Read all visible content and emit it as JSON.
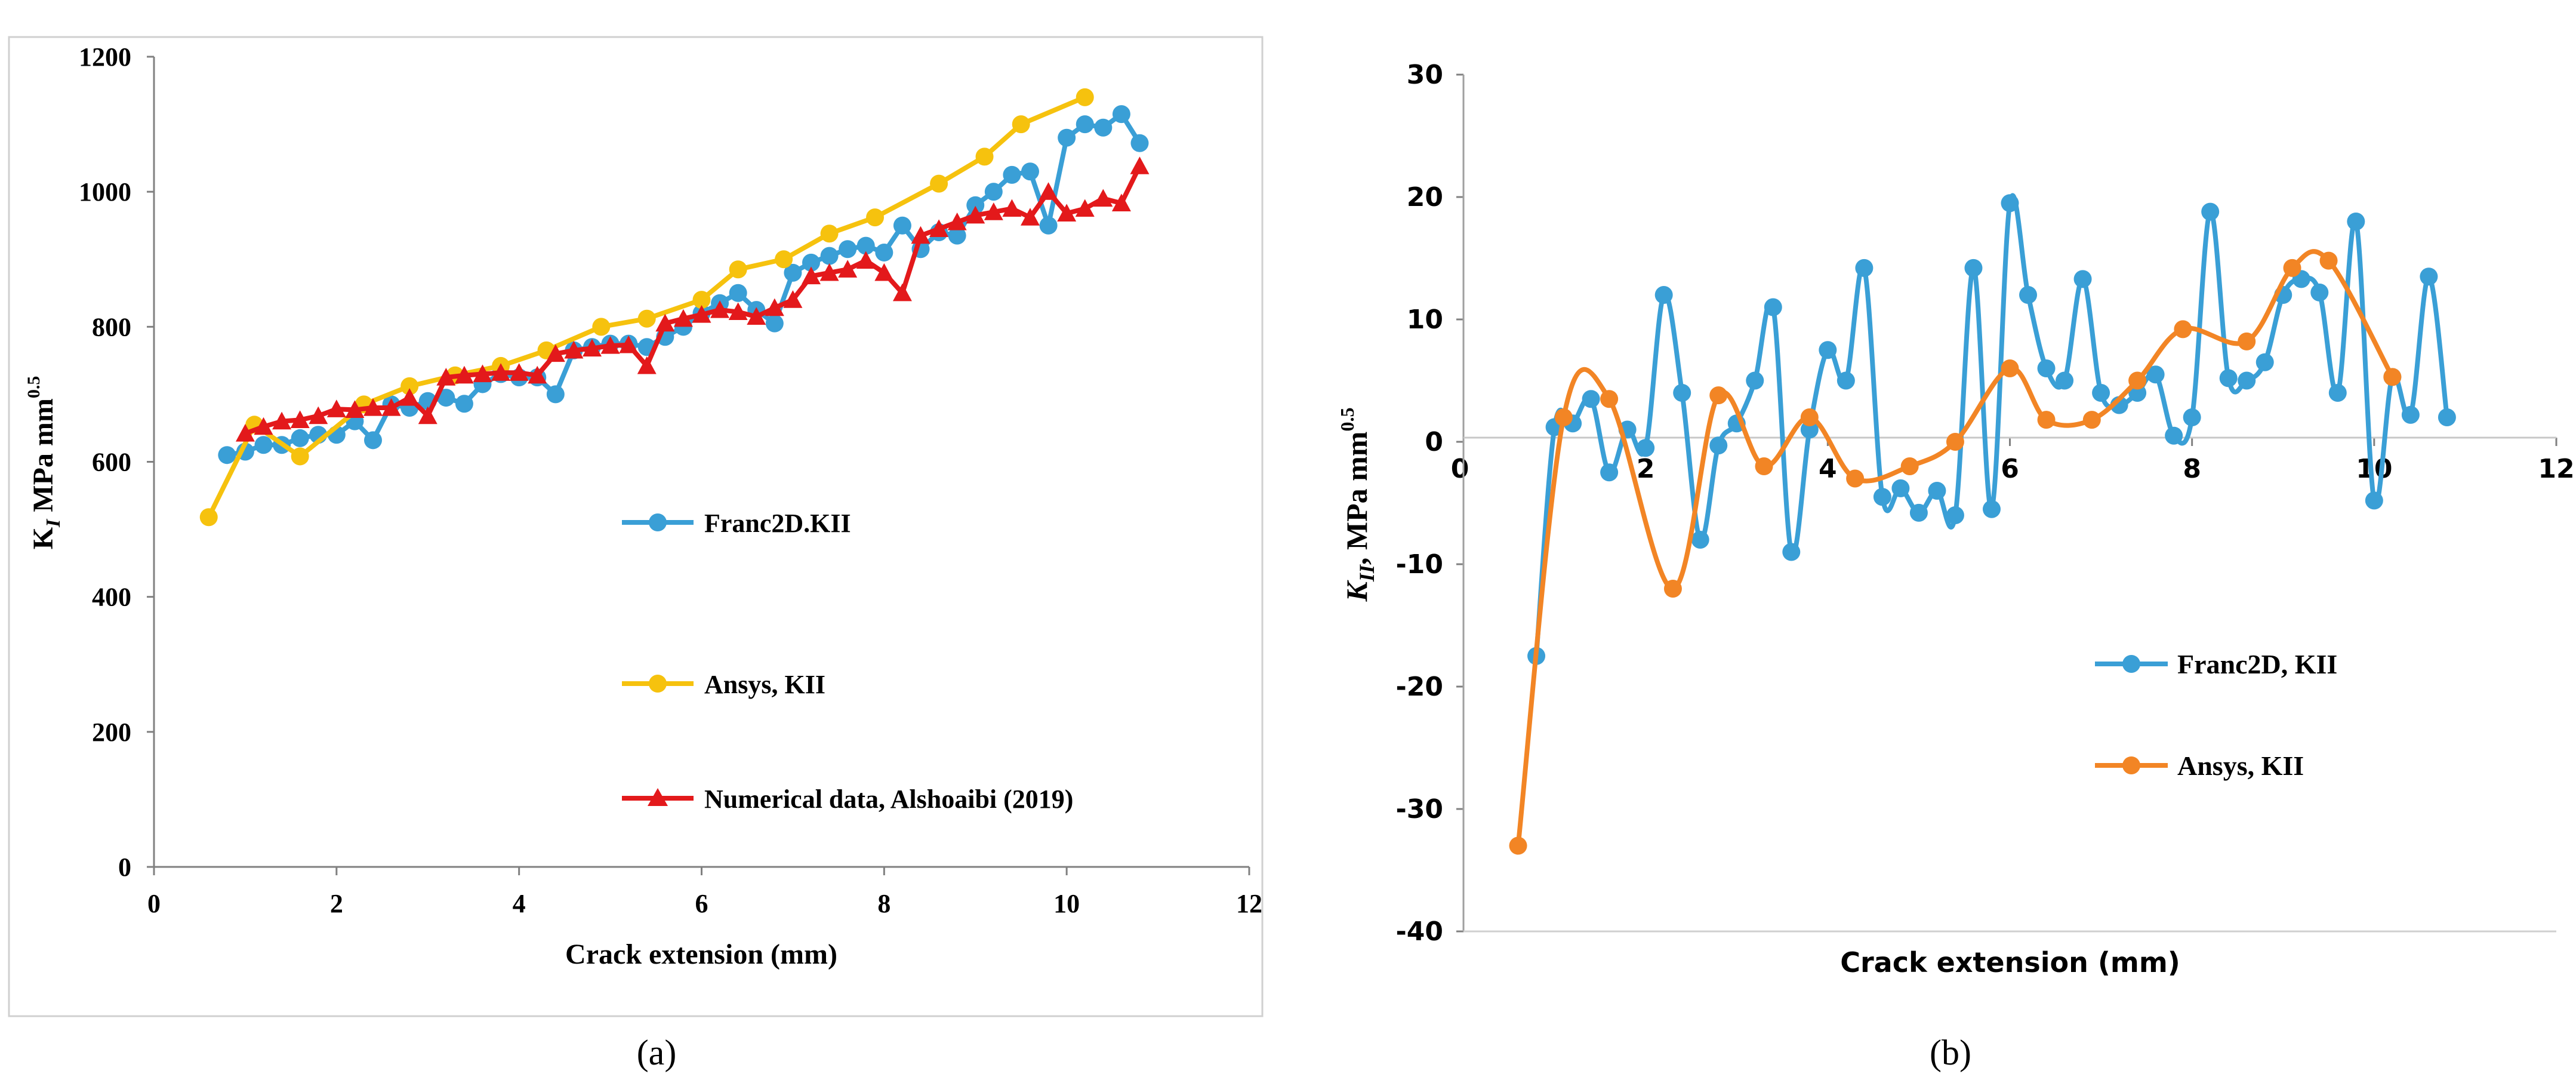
{
  "chart_data": [
    {
      "panel": "a",
      "type": "line",
      "caption": "(a)",
      "title": "",
      "xlabel": "Crack extension (mm)",
      "ylabel_main": "K",
      "ylabel_sub": "I",
      "ylabel_unit": " MPa mm",
      "ylabel_sup": "0.5",
      "xlim": [
        0,
        12
      ],
      "ylim": [
        0,
        1200
      ],
      "xticks": [
        0,
        2,
        4,
        6,
        8,
        10,
        12
      ],
      "yticks": [
        0,
        200,
        400,
        600,
        800,
        1000,
        1200
      ],
      "grid": false,
      "legend_position": "center-right",
      "series": [
        {
          "name": "Franc2D.KII",
          "color": "#3A9FD6",
          "marker": "circle",
          "x": [
            0.8,
            1.0,
            1.2,
            1.4,
            1.6,
            1.8,
            2.0,
            2.2,
            2.4,
            2.6,
            2.8,
            3.0,
            3.2,
            3.4,
            3.6,
            3.8,
            4.0,
            4.2,
            4.4,
            4.6,
            4.8,
            5.0,
            5.2,
            5.4,
            5.6,
            5.8,
            6.0,
            6.2,
            6.4,
            6.6,
            6.8,
            7.0,
            7.2,
            7.4,
            7.6,
            7.8,
            8.0,
            8.2,
            8.4,
            8.6,
            8.8,
            9.0,
            9.2,
            9.4,
            9.6,
            9.8,
            10.0,
            10.2,
            10.4,
            10.6,
            10.8
          ],
          "y": [
            610,
            615,
            625,
            625,
            635,
            640,
            640,
            660,
            632,
            685,
            680,
            690,
            695,
            686,
            715,
            730,
            725,
            725,
            700,
            765,
            770,
            775,
            775,
            770,
            785,
            800,
            820,
            835,
            850,
            825,
            805,
            880,
            895,
            905,
            915,
            920,
            910,
            950,
            915,
            940,
            935,
            980,
            1000,
            1025,
            1030,
            950,
            1080,
            1100,
            1095,
            1115,
            1072
          ]
        },
        {
          "name": "Ansys, KII",
          "color": "#F6C20E",
          "marker": "circle",
          "x": [
            0.6,
            1.1,
            1.6,
            2.3,
            2.8,
            3.3,
            3.8,
            4.3,
            4.9,
            5.4,
            6.0,
            6.4,
            6.9,
            7.4,
            7.9,
            8.6,
            9.1,
            9.5,
            10.2
          ],
          "y": [
            518,
            655,
            608,
            685,
            712,
            728,
            742,
            765,
            800,
            812,
            840,
            885,
            900,
            938,
            962,
            1012,
            1052,
            1100,
            1140
          ]
        },
        {
          "name": "Numerical data, Alshoaibi (2019)",
          "color": "#E3191B",
          "marker": "triangle",
          "x": [
            1.0,
            1.2,
            1.4,
            1.6,
            1.8,
            2.0,
            2.2,
            2.4,
            2.6,
            2.8,
            3.0,
            3.2,
            3.4,
            3.6,
            3.8,
            4.0,
            4.2,
            4.4,
            4.6,
            4.8,
            5.0,
            5.2,
            5.4,
            5.6,
            5.8,
            6.0,
            6.2,
            6.4,
            6.6,
            6.8,
            7.0,
            7.2,
            7.4,
            7.6,
            7.8,
            8.0,
            8.2,
            8.4,
            8.6,
            8.8,
            9.0,
            9.2,
            9.4,
            9.6,
            9.8,
            10.0,
            10.2,
            10.4,
            10.6,
            10.8
          ],
          "y": [
            642,
            652,
            660,
            662,
            668,
            678,
            677,
            680,
            680,
            695,
            668,
            725,
            728,
            730,
            732,
            732,
            728,
            760,
            765,
            768,
            772,
            773,
            742,
            805,
            812,
            818,
            825,
            822,
            815,
            828,
            840,
            875,
            880,
            885,
            898,
            880,
            850,
            935,
            945,
            955,
            965,
            970,
            975,
            962,
            1000,
            968,
            975,
            990,
            983,
            1038
          ]
        }
      ]
    },
    {
      "panel": "b",
      "type": "line",
      "caption": "(b)",
      "title": "",
      "xlabel": "Crack extension (mm)",
      "ylabel_main": "K",
      "ylabel_sub": "II",
      "ylabel_unit": ", MPa mm",
      "ylabel_sup": "0.5",
      "xlim": [
        0,
        12
      ],
      "ylim": [
        -40,
        30
      ],
      "xticks": [
        0,
        2,
        4,
        6,
        8,
        10,
        12
      ],
      "yticks": [
        -40,
        -30,
        -20,
        -10,
        0,
        10,
        20,
        30
      ],
      "grid": false,
      "legend_position": "center-right",
      "series": [
        {
          "name": "Franc2D, KII",
          "color": "#3A9FD6",
          "marker": "circle",
          "x": [
            0.8,
            1.0,
            1.2,
            1.4,
            1.6,
            1.8,
            2.0,
            2.2,
            2.4,
            2.6,
            2.8,
            3.0,
            3.2,
            3.4,
            3.6,
            3.8,
            4.0,
            4.2,
            4.4,
            4.6,
            4.8,
            5.0,
            5.2,
            5.4,
            5.6,
            5.8,
            6.0,
            6.2,
            6.4,
            6.6,
            6.8,
            7.0,
            7.2,
            7.4,
            7.6,
            7.8,
            8.0,
            8.2,
            8.4,
            8.6,
            8.8,
            9.0,
            9.2,
            9.4,
            9.6,
            9.8,
            10.0,
            10.2,
            10.4,
            10.6,
            10.8
          ],
          "y": [
            -17.5,
            1.2,
            1.5,
            3.5,
            -2.5,
            1.0,
            -0.5,
            12.0,
            4.0,
            -8.0,
            -0.3,
            1.5,
            5.0,
            11.0,
            -9.0,
            1.0,
            7.5,
            5.0,
            14.2,
            -4.5,
            -3.8,
            -5.8,
            -4.0,
            -6.0,
            14.2,
            -5.5,
            19.5,
            12.0,
            6.0,
            5.0,
            13.3,
            4.0,
            3.0,
            4.0,
            5.5,
            0.5,
            2.0,
            18.8,
            5.2,
            5.0,
            6.5,
            12.0,
            13.3,
            12.2,
            4.0,
            18.0,
            -4.8,
            5.3,
            2.2,
            13.5,
            2.0
          ]
        },
        {
          "name": "Ansys, KII",
          "color": "#F28525",
          "marker": "circle",
          "x": [
            0.6,
            1.1,
            1.6,
            2.3,
            2.8,
            3.3,
            3.8,
            4.3,
            4.9,
            5.4,
            6.0,
            6.4,
            6.9,
            7.4,
            7.9,
            8.6,
            9.1,
            9.5,
            10.2
          ],
          "y": [
            -33.0,
            2.0,
            3.5,
            -12.0,
            3.8,
            -2.0,
            2.0,
            -3.0,
            -2.0,
            0.0,
            6.0,
            1.8,
            1.8,
            5.0,
            9.2,
            8.2,
            14.2,
            14.8,
            5.3
          ]
        }
      ]
    }
  ]
}
